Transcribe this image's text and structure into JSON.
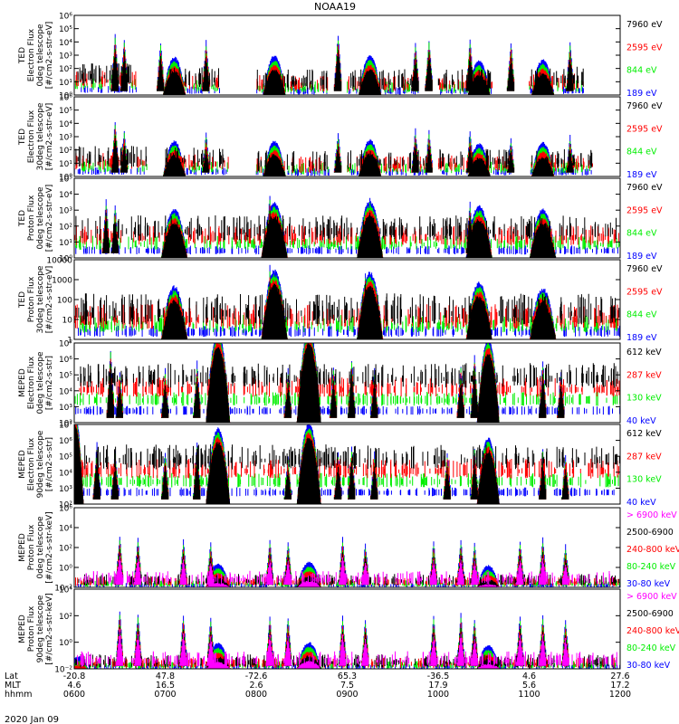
{
  "figure": {
    "title": "NOAA19",
    "date": "2020 Jan 09"
  },
  "colors": {
    "black": "#000000",
    "red": "#ff0000",
    "green": "#00ee00",
    "blue": "#0000ff",
    "magenta": "#ff00ff"
  },
  "chart_data": {
    "type": "line",
    "x_axis": {
      "row_labels": [
        "Lat",
        "MLT",
        "hhmm"
      ],
      "ticks": [
        {
          "time": "0600",
          "lat": "-20.8",
          "mlt": "4.6"
        },
        {
          "time": "0700",
          "lat": "47.8",
          "mlt": "16.5"
        },
        {
          "time": "0800",
          "lat": "-72.6",
          "mlt": "2.6"
        },
        {
          "time": "0900",
          "lat": "65.3",
          "mlt": "7.5"
        },
        {
          "time": "1000",
          "lat": "-36.5",
          "mlt": "17.9"
        },
        {
          "time": "1100",
          "lat": "4.6",
          "mlt": "5.6"
        },
        {
          "time": "1200",
          "lat": "27.6",
          "mlt": "17.2"
        }
      ],
      "range_hours": [
        6,
        12
      ]
    },
    "panels": [
      {
        "id": "ted-e-0",
        "ylabel": [
          "TED",
          "Electron Flux",
          "0deg telescope",
          "[#/cm2-s-str-eV]"
        ],
        "log_scale": true,
        "ylim_exp": [
          0,
          6
        ],
        "tick_labels": [
          "10^0",
          "10^1",
          "10^2",
          "10^3",
          "10^4",
          "10^5",
          "10^6"
        ],
        "series": [
          {
            "name": "7960 eV",
            "color": "black"
          },
          {
            "name": "2595 eV",
            "color": "red"
          },
          {
            "name": "844 eV",
            "color": "green"
          },
          {
            "name": "189 eV",
            "color": "blue"
          }
        ],
        "passes": [
          [
            7.1,
            0.12,
            2.8
          ],
          [
            8.2,
            0.12,
            2.9
          ],
          [
            9.25,
            0.12,
            2.9
          ],
          [
            10.45,
            0.12,
            2.5
          ],
          [
            11.15,
            0.12,
            2.6
          ]
        ],
        "spikes": [
          [
            6.45,
            4.6
          ],
          [
            6.55,
            4.2
          ],
          [
            6.95,
            4.0
          ],
          [
            7.45,
            4.1
          ],
          [
            8.9,
            4.6
          ],
          [
            9.75,
            3.9
          ],
          [
            9.9,
            4.2
          ],
          [
            10.35,
            4.2
          ],
          [
            10.8,
            4.0
          ],
          [
            11.45,
            4.0
          ]
        ],
        "noise": [
          [
            6.0,
            6.7,
            1.5
          ],
          [
            7.0,
            7.6,
            1.2
          ],
          [
            8.0,
            8.8,
            1.0
          ],
          [
            9.0,
            9.8,
            1.0
          ],
          [
            10.0,
            10.6,
            1.0
          ],
          [
            11.0,
            11.6,
            1.2
          ]
        ]
      },
      {
        "id": "ted-e-30",
        "ylabel": [
          "TED",
          "Electron Flux",
          "30deg telescope",
          "[#/cm2-s-str-eV]"
        ],
        "log_scale": true,
        "ylim_exp": [
          0,
          6
        ],
        "tick_labels": [
          "10^0",
          "10^1",
          "10^2",
          "10^3",
          "10^4",
          "10^5",
          "10^6"
        ],
        "series": [
          {
            "name": "7960 eV",
            "color": "black"
          },
          {
            "name": "2595 eV",
            "color": "red"
          },
          {
            "name": "844 eV",
            "color": "green"
          },
          {
            "name": "189 eV",
            "color": "blue"
          }
        ],
        "passes": [
          [
            7.1,
            0.12,
            2.6
          ],
          [
            8.2,
            0.12,
            2.6
          ],
          [
            9.25,
            0.12,
            2.7
          ],
          [
            10.45,
            0.12,
            2.4
          ],
          [
            11.15,
            0.12,
            2.5
          ]
        ],
        "spikes": [
          [
            6.45,
            4.2
          ],
          [
            6.55,
            3.5
          ],
          [
            7.45,
            3.2
          ],
          [
            8.9,
            3.3
          ],
          [
            9.75,
            3.5
          ],
          [
            9.9,
            3.4
          ],
          [
            10.35,
            3.4
          ],
          [
            10.8,
            2.9
          ],
          [
            11.45,
            3.0
          ]
        ],
        "noise": [
          [
            6.0,
            6.8,
            1.4
          ],
          [
            7.0,
            7.7,
            1.3
          ],
          [
            8.0,
            8.8,
            1.0
          ],
          [
            9.0,
            9.9,
            1.1
          ],
          [
            10.0,
            10.8,
            1.2
          ],
          [
            11.0,
            11.7,
            1.2
          ]
        ]
      },
      {
        "id": "ted-p-0",
        "ylabel": [
          "TED",
          "Proton Flux",
          "0deg telescope",
          "[#/cm2-s-str-eV]"
        ],
        "log_scale": true,
        "ylim_exp": [
          0,
          5
        ],
        "tick_labels": [
          "10^0",
          "10^1",
          "10^2",
          "10^3",
          "10^4",
          "10^5"
        ],
        "series": [
          {
            "name": "7960 eV",
            "color": "black"
          },
          {
            "name": "2595 eV",
            "color": "red"
          },
          {
            "name": "844 eV",
            "color": "green"
          },
          {
            "name": "189 eV",
            "color": "blue"
          }
        ],
        "passes": [
          [
            7.1,
            0.14,
            3.0
          ],
          [
            8.2,
            0.14,
            3.4
          ],
          [
            9.25,
            0.14,
            3.5
          ],
          [
            10.45,
            0.14,
            3.2
          ],
          [
            11.15,
            0.14,
            3.0
          ]
        ],
        "spikes": [
          [
            6.35,
            3.6
          ],
          [
            6.45,
            3.3
          ],
          [
            8.15,
            3.9
          ],
          [
            9.25,
            3.7
          ],
          [
            10.35,
            3.5
          ]
        ],
        "noise": [
          [
            6.0,
            12.0,
            1.8
          ]
        ]
      },
      {
        "id": "ted-p-30",
        "ylabel": [
          "TED",
          "Proton Flux",
          "30deg telescope",
          "[#/cm2-s-str-eV]"
        ],
        "log_scale": true,
        "ylim_exp": [
          0,
          4
        ],
        "tick_labels": [
          "1",
          "10",
          "100",
          "1000",
          "10000"
        ],
        "series": [
          {
            "name": "7960 eV",
            "color": "black"
          },
          {
            "name": "2595 eV",
            "color": "red"
          },
          {
            "name": "844 eV",
            "color": "green"
          },
          {
            "name": "189 eV",
            "color": "blue"
          }
        ],
        "passes": [
          [
            7.1,
            0.14,
            2.6
          ],
          [
            8.2,
            0.14,
            3.4
          ],
          [
            9.25,
            0.14,
            3.3
          ],
          [
            10.45,
            0.14,
            2.8
          ],
          [
            11.15,
            0.14,
            2.5
          ]
        ],
        "spikes": [
          [
            8.15,
            3.6
          ],
          [
            9.2,
            3.4
          ]
        ],
        "noise": [
          [
            6.0,
            12.0,
            1.4
          ]
        ]
      },
      {
        "id": "meped-e-0",
        "ylabel": [
          "MEPED",
          "Electron Flux",
          "0deg telescope",
          "[#/cm2-s-str]"
        ],
        "log_scale": true,
        "ylim_exp": [
          2,
          7
        ],
        "tick_labels": [
          "10^2",
          "10^3",
          "10^4",
          "10^5",
          "10^6",
          "10^7"
        ],
        "series": [
          {
            "name": "612 keV",
            "color": "black"
          },
          {
            "name": "287 keV",
            "color": "red"
          },
          {
            "name": "130 keV",
            "color": "green"
          },
          {
            "name": "40 keV",
            "color": "blue"
          }
        ],
        "passes": [
          [
            7.58,
            0.13,
            5.6
          ],
          [
            8.58,
            0.13,
            5.8
          ],
          [
            10.55,
            0.12,
            5.2
          ]
        ],
        "spikes": [
          [
            6.4,
            6.6
          ],
          [
            6.5,
            5.2
          ],
          [
            7.0,
            5.3
          ],
          [
            7.35,
            5.8
          ],
          [
            8.35,
            5.3
          ],
          [
            8.85,
            5.5
          ],
          [
            9.05,
            6.0
          ],
          [
            9.3,
            5.4
          ],
          [
            10.25,
            5.6
          ],
          [
            10.4,
            6.2
          ],
          [
            11.15,
            5.9
          ],
          [
            11.35,
            5.3
          ]
        ],
        "noise": [
          [
            6.0,
            12.0,
            3.0
          ]
        ]
      },
      {
        "id": "meped-e-90",
        "ylabel": [
          "MEPED",
          "Electron Flux",
          "90deg telescope",
          "[#/cm2-s-str]"
        ],
        "log_scale": true,
        "ylim_exp": [
          2,
          7
        ],
        "tick_labels": [
          "10^2",
          "10^3",
          "10^4",
          "10^5",
          "10^6",
          "10^7"
        ],
        "series": [
          {
            "name": "612 keV",
            "color": "black"
          },
          {
            "name": "287 keV",
            "color": "red"
          },
          {
            "name": "130 keV",
            "color": "green"
          },
          {
            "name": "40 keV",
            "color": "blue"
          }
        ],
        "passes": [
          [
            6.0,
            0.1,
            5.8
          ],
          [
            7.58,
            0.13,
            4.7
          ],
          [
            8.58,
            0.13,
            5.0
          ],
          [
            10.55,
            0.12,
            4.1
          ]
        ],
        "spikes": [
          [
            6.25,
            5.8
          ],
          [
            6.45,
            5.4
          ],
          [
            7.0,
            5.3
          ],
          [
            7.35,
            5.8
          ],
          [
            8.35,
            5.0
          ],
          [
            8.9,
            5.3
          ],
          [
            9.05,
            5.6
          ],
          [
            9.3,
            5.2
          ],
          [
            10.1,
            5.3
          ],
          [
            10.4,
            5.6
          ],
          [
            11.15,
            5.5
          ],
          [
            11.4,
            5.1
          ]
        ],
        "noise": [
          [
            6.0,
            12.0,
            3.0
          ]
        ]
      },
      {
        "id": "meped-p-0",
        "ylabel": [
          "MEPED",
          "Proton Flux",
          "0deg telescope",
          "[#/cm2-s-str-keV]"
        ],
        "log_scale": true,
        "ylim_exp": [
          -2,
          7
        ],
        "tick_labels": [
          "10^-2",
          "10^0",
          "10^2",
          "10^4",
          "10^6"
        ],
        "series": [
          {
            "name": "> 6900 keV",
            "color": "magenta"
          },
          {
            "name": "2500-6900",
            "color": "black"
          },
          {
            "name": "240-800 keV",
            "color": "red"
          },
          {
            "name": "80-240 keV",
            "color": "green"
          },
          {
            "name": "30-80 keV",
            "color": "blue"
          }
        ],
        "passes": [
          [
            7.58,
            0.13,
            2.6
          ],
          [
            8.58,
            0.13,
            2.8
          ],
          [
            10.55,
            0.12,
            2.4
          ]
        ],
        "spikes": [
          [
            6.5,
            3.8
          ],
          [
            6.7,
            3.5
          ],
          [
            7.2,
            3.3
          ],
          [
            7.5,
            3.0
          ],
          [
            8.15,
            3.4
          ],
          [
            8.35,
            3.2
          ],
          [
            8.95,
            3.6
          ],
          [
            9.2,
            3.0
          ],
          [
            9.95,
            3.2
          ],
          [
            10.25,
            3.4
          ],
          [
            10.4,
            3.0
          ],
          [
            10.9,
            3.3
          ],
          [
            11.15,
            3.5
          ],
          [
            11.4,
            2.8
          ]
        ],
        "noise": [
          [
            6.0,
            12.0,
            0.9
          ]
        ]
      },
      {
        "id": "meped-p-90",
        "ylabel": [
          "MEPED",
          "Proton Flux",
          "90deg telescope",
          "[#/cm2-s-str-keV]"
        ],
        "log_scale": true,
        "ylim_exp": [
          -2,
          6
        ],
        "tick_labels": [
          "10^-2",
          "10^0",
          "10^2",
          "10^4"
        ],
        "series": [
          {
            "name": "> 6900 keV",
            "color": "magenta"
          },
          {
            "name": "2500-6900",
            "color": "black"
          },
          {
            "name": "240-800 keV",
            "color": "red"
          },
          {
            "name": "80-240 keV",
            "color": "green"
          },
          {
            "name": "30-80 keV",
            "color": "blue"
          }
        ],
        "passes": [
          [
            6.05,
            0.1,
            1.2
          ],
          [
            7.58,
            0.13,
            2.5
          ],
          [
            8.58,
            0.13,
            2.6
          ],
          [
            10.55,
            0.12,
            2.3
          ]
        ],
        "spikes": [
          [
            6.5,
            3.8
          ],
          [
            6.7,
            3.5
          ],
          [
            7.2,
            3.4
          ],
          [
            7.5,
            3.1
          ],
          [
            8.15,
            3.3
          ],
          [
            8.35,
            3.2
          ],
          [
            8.95,
            3.3
          ],
          [
            9.2,
            3.0
          ],
          [
            9.95,
            3.3
          ],
          [
            10.25,
            3.5
          ],
          [
            10.4,
            3.0
          ],
          [
            10.9,
            3.3
          ],
          [
            11.15,
            3.4
          ],
          [
            11.4,
            2.9
          ]
        ],
        "noise": [
          [
            6.0,
            12.0,
            0.8
          ]
        ]
      }
    ]
  }
}
